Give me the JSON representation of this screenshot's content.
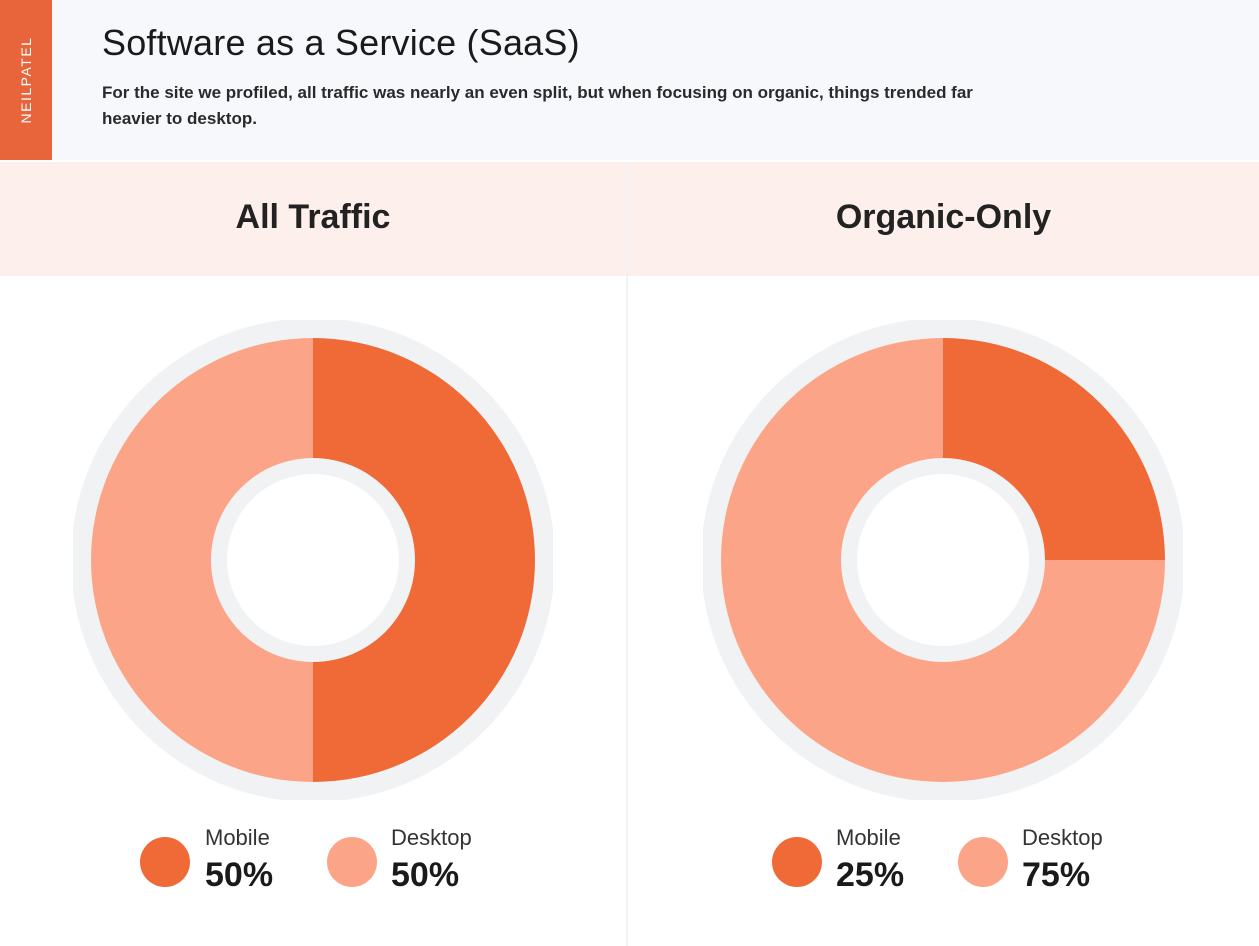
{
  "brand": "NEILPATEL",
  "title": "Software as a Service (SaaS)",
  "subtitle": "For the site we profiled, all traffic was nearly an even split, but when focusing on organic, things trended far heavier to desktop.",
  "colors": {
    "accent": "#e8643a",
    "mobile": "#f06a38",
    "desktop": "#fca487",
    "ring": "#f1f2f4",
    "panel_header": "#fdefeb"
  },
  "chart_data": [
    {
      "type": "pie",
      "title": "All Traffic",
      "categories": [
        "Mobile",
        "Desktop"
      ],
      "values": [
        50,
        50
      ],
      "value_labels": [
        "50%",
        "50%"
      ]
    },
    {
      "type": "pie",
      "title": "Organic-Only",
      "categories": [
        "Mobile",
        "Desktop"
      ],
      "values": [
        25,
        75
      ],
      "value_labels": [
        "25%",
        "75%"
      ]
    }
  ]
}
